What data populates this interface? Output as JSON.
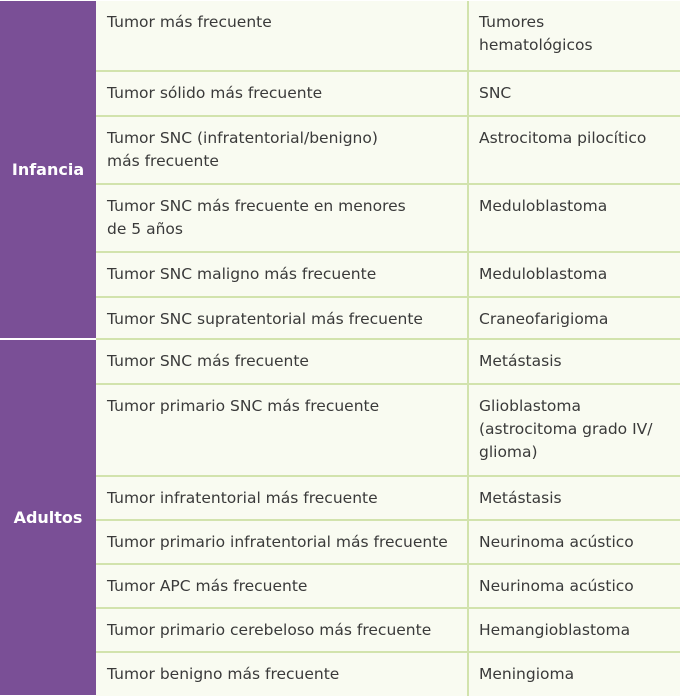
{
  "groups": [
    {
      "label": "Infancia",
      "rows": [
        {
          "description": "Tumor más frecuente",
          "tumor": "Tumores hematológicos"
        },
        {
          "description": "Tumor sólido más frecuente",
          "tumor": "SNC"
        },
        {
          "description": "Tumor SNC (infratentorial/benigno) más frecuente",
          "tumor": "Astrocitoma pilocítico"
        },
        {
          "description": "Tumor SNC más frecuente en menores de 5 años",
          "tumor": "Meduloblastoma"
        },
        {
          "description": "Tumor SNC maligno más frecuente",
          "tumor": "Meduloblastoma"
        },
        {
          "description": "Tumor SNC supratentorial más frecuente",
          "tumor": "Craneofarigioma"
        }
      ]
    },
    {
      "label": "Adultos",
      "rows": [
        {
          "description": "Tumor SNC más frecuente",
          "tumor": "Metástasis"
        },
        {
          "description": "Tumor primario SNC más frecuente",
          "tumor": "Glioblastoma (astrocitoma grado IV/ glioma)"
        },
        {
          "description": "Tumor infratentorial más frecuente",
          "tumor": "Metástasis"
        },
        {
          "description": "Tumor primario infratentorial más frecuente",
          "tumor": "Neurinoma acústico"
        },
        {
          "description": "Tumor APC más frecuente",
          "tumor": "Neurinoma acústico"
        },
        {
          "description": "Tumor primario cerebeloso más frecuente",
          "tumor": "Hemangioblastoma"
        },
        {
          "description": "Tumor benigno más frecuente",
          "tumor": "Meningioma"
        }
      ]
    }
  ]
}
